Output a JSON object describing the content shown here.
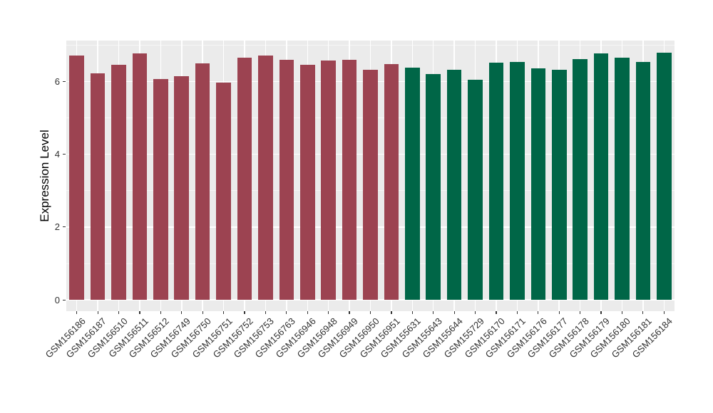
{
  "chart_data": {
    "type": "bar",
    "title": "",
    "xlabel": "",
    "ylabel": "Expression Level",
    "categories": [
      "GSM156186",
      "GSM156187",
      "GSM156510",
      "GSM156511",
      "GSM156512",
      "GSM156749",
      "GSM156750",
      "GSM156751",
      "GSM156752",
      "GSM156753",
      "GSM156763",
      "GSM156946",
      "GSM156948",
      "GSM156949",
      "GSM156950",
      "GSM156951",
      "GSM155631",
      "GSM155643",
      "GSM155644",
      "GSM155729",
      "GSM156170",
      "GSM156171",
      "GSM156176",
      "GSM156177",
      "GSM156178",
      "GSM156179",
      "GSM156180",
      "GSM156181",
      "GSM156184"
    ],
    "values": [
      6.7,
      6.22,
      6.45,
      6.77,
      6.06,
      6.15,
      6.5,
      5.97,
      6.65,
      6.7,
      6.59,
      6.46,
      6.57,
      6.6,
      6.31,
      6.47,
      6.38,
      6.2,
      6.31,
      6.05,
      6.52,
      6.53,
      6.36,
      6.31,
      6.62,
      6.76,
      6.66,
      6.54,
      6.78
    ],
    "group_split_index": 16,
    "group_colors": [
      "#9C4351",
      "#006647"
    ],
    "yticks": [
      0,
      2,
      4,
      6
    ],
    "minor_yticks": [
      1,
      3,
      5,
      7
    ],
    "ylim": [
      -0.31,
      7.12
    ],
    "x_tick_angle": 45,
    "grid": true,
    "legend": "none",
    "panel_bg": "#EBEBEB",
    "grid_color": "#FFFFFF",
    "text_color": "#303030",
    "bar_width_fraction": 0.7
  }
}
